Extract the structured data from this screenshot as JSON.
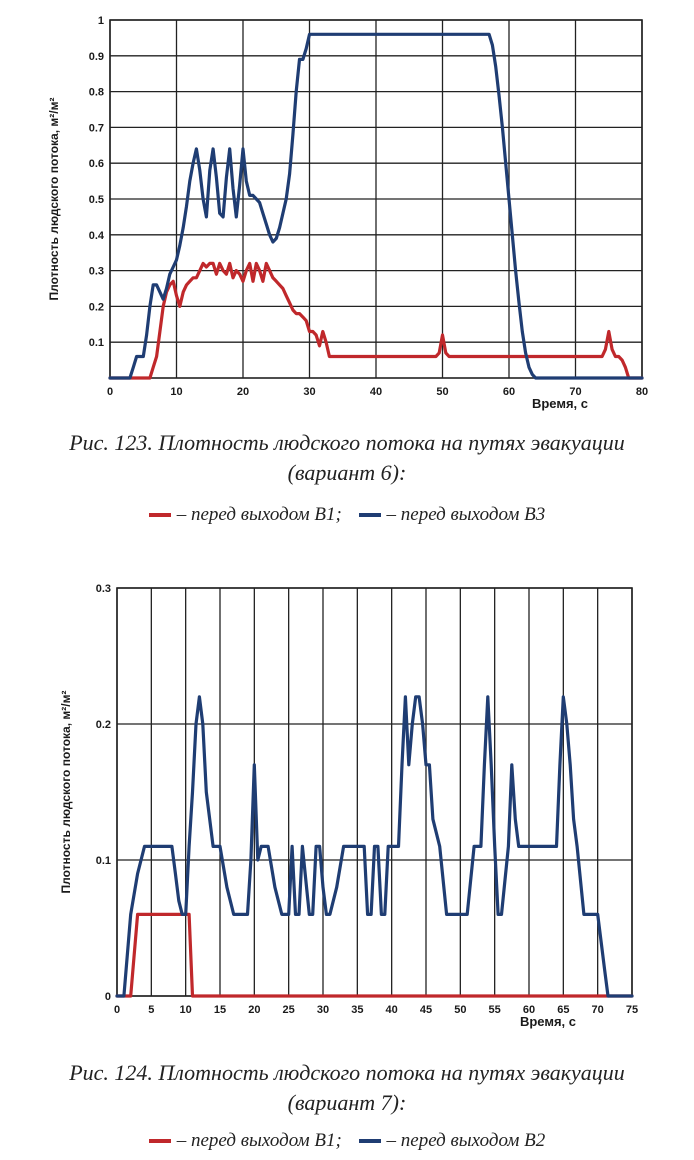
{
  "chart_data": [
    {
      "type": "line",
      "ylabel": "Плотность людского потока, м²/м²",
      "xlabel": "Время, с",
      "xlim": [
        0,
        80
      ],
      "ylim": [
        0,
        1
      ],
      "x_ticks": [
        "0",
        "10",
        "20",
        "30",
        "40",
        "50",
        "60",
        "70",
        "80"
      ],
      "y_ticks": [
        "0.1",
        "0.2",
        "0.3",
        "0.4",
        "0.5",
        "0.6",
        "0.7",
        "0.8",
        "0.9",
        "1"
      ],
      "grid": true,
      "caption_line1": "Рис. 123. Плотность людского потока на путях эвакуации",
      "caption_line2": "(вариант 6):",
      "legend": [
        {
          "color": "#c0282b",
          "text": "– перед выходом В1;"
        },
        {
          "color": "#1f3d73",
          "text": "– перед выходом В3"
        }
      ],
      "series": [
        {
          "color": "#c0282b",
          "x": [
            0,
            6,
            6.5,
            7,
            7.5,
            8,
            8.5,
            9,
            9.5,
            10,
            10.5,
            11,
            11.5,
            12,
            12.5,
            13,
            13.5,
            14,
            14.5,
            15,
            15.5,
            16,
            16.5,
            17,
            17.5,
            18,
            18.5,
            19,
            19.5,
            20,
            20.5,
            21,
            21.5,
            22,
            22.5,
            23,
            23.5,
            24,
            24.5,
            25,
            25.5,
            26,
            26.5,
            27,
            27.5,
            28,
            28.5,
            29,
            29.5,
            30,
            30.5,
            31,
            31.5,
            32,
            32.5,
            33,
            33.5,
            34,
            49,
            49.5,
            50,
            50.5,
            51,
            74,
            74.5,
            75,
            75.5,
            76,
            76.5,
            77,
            77.5,
            78,
            80
          ],
          "y": [
            0,
            0,
            0.03,
            0.06,
            0.13,
            0.2,
            0.24,
            0.26,
            0.27,
            0.23,
            0.2,
            0.24,
            0.26,
            0.27,
            0.28,
            0.28,
            0.3,
            0.32,
            0.31,
            0.32,
            0.32,
            0.29,
            0.32,
            0.3,
            0.29,
            0.32,
            0.28,
            0.3,
            0.29,
            0.27,
            0.3,
            0.32,
            0.27,
            0.32,
            0.3,
            0.27,
            0.32,
            0.3,
            0.28,
            0.27,
            0.26,
            0.25,
            0.23,
            0.21,
            0.19,
            0.18,
            0.18,
            0.17,
            0.16,
            0.13,
            0.13,
            0.12,
            0.09,
            0.13,
            0.1,
            0.06,
            0.06,
            0.06,
            0.06,
            0.07,
            0.12,
            0.07,
            0.06,
            0.06,
            0.08,
            0.13,
            0.08,
            0.06,
            0.06,
            0.05,
            0.03,
            0,
            0
          ]
        },
        {
          "color": "#1f3d73",
          "x": [
            0,
            3,
            3.5,
            4,
            4.5,
            5,
            5.5,
            6,
            6.5,
            7,
            7.5,
            8,
            8.5,
            9,
            9.5,
            10,
            10.5,
            11,
            11.5,
            12,
            12.5,
            13,
            13.5,
            14,
            14.5,
            15,
            15.5,
            16,
            16.5,
            17,
            17.5,
            18,
            18.5,
            19,
            19.5,
            20,
            20.5,
            21,
            21.5,
            22,
            22.5,
            23,
            23.5,
            24,
            24.5,
            25,
            25.5,
            26,
            26.5,
            27,
            27.5,
            28,
            28.5,
            29,
            29.5,
            30,
            30.5,
            31,
            40,
            50,
            56,
            56.5,
            57,
            57.5,
            58,
            58.5,
            59,
            59.5,
            60,
            60.5,
            61,
            61.5,
            62,
            62.5,
            63,
            63.5,
            64,
            80
          ],
          "y": [
            0,
            0,
            0.03,
            0.06,
            0.06,
            0.06,
            0.12,
            0.2,
            0.26,
            0.26,
            0.24,
            0.22,
            0.25,
            0.29,
            0.31,
            0.33,
            0.37,
            0.42,
            0.48,
            0.55,
            0.6,
            0.64,
            0.58,
            0.5,
            0.45,
            0.58,
            0.64,
            0.56,
            0.46,
            0.45,
            0.56,
            0.64,
            0.53,
            0.45,
            0.54,
            0.64,
            0.55,
            0.51,
            0.51,
            0.5,
            0.49,
            0.46,
            0.43,
            0.4,
            0.38,
            0.39,
            0.42,
            0.46,
            0.5,
            0.57,
            0.68,
            0.8,
            0.89,
            0.89,
            0.92,
            0.96,
            0.96,
            0.96,
            0.96,
            0.96,
            0.96,
            0.96,
            0.96,
            0.93,
            0.87,
            0.79,
            0.7,
            0.6,
            0.5,
            0.4,
            0.3,
            0.21,
            0.13,
            0.07,
            0.03,
            0.01,
            0,
            0
          ]
        }
      ]
    },
    {
      "type": "line",
      "ylabel": "Плотность людского потока, м²/м²",
      "xlabel": "Время, с",
      "xlim": [
        0,
        75
      ],
      "ylim": [
        0,
        0.3
      ],
      "x_ticks": [
        "0",
        "5",
        "10",
        "15",
        "20",
        "25",
        "30",
        "35",
        "40",
        "45",
        "50",
        "55",
        "60",
        "65",
        "70",
        "75"
      ],
      "y_ticks": [
        "0",
        "0.1",
        "0.2",
        "0.3"
      ],
      "grid": true,
      "caption_line1": "Рис. 124. Плотность людского потока на путях эвакуации",
      "caption_line2": "(вариант 7):",
      "legend": [
        {
          "color": "#c0282b",
          "text": "– перед выходом В1;"
        },
        {
          "color": "#1f3d73",
          "text": "– перед выходом В2"
        }
      ],
      "series": [
        {
          "color": "#c0282b",
          "x": [
            0,
            2,
            3,
            4,
            5,
            6,
            7,
            8,
            9,
            10,
            10.5,
            11,
            75
          ],
          "y": [
            0,
            0,
            0.06,
            0.06,
            0.06,
            0.06,
            0.06,
            0.06,
            0.06,
            0.06,
            0.06,
            0,
            0
          ]
        },
        {
          "color": "#1f3d73",
          "x": [
            0,
            1,
            2,
            3,
            4,
            5,
            6,
            7,
            8,
            8.5,
            9,
            9.5,
            10,
            10.5,
            11,
            11.5,
            12,
            12.5,
            13,
            14,
            15,
            16,
            17,
            18,
            19,
            19.5,
            20,
            20.5,
            21,
            22,
            23,
            24,
            25,
            25.5,
            26,
            26.5,
            27,
            28,
            28.5,
            29,
            29.5,
            30,
            30.5,
            31,
            32,
            33,
            34,
            35,
            36,
            36.5,
            37,
            37.5,
            38,
            38.5,
            39,
            39.5,
            40,
            41,
            41.5,
            42,
            42.5,
            43,
            43.5,
            44,
            44.5,
            45,
            45.5,
            46,
            47,
            48,
            49,
            50,
            51,
            52,
            53,
            53.5,
            54,
            54.5,
            55,
            55.5,
            56,
            57,
            57.5,
            58,
            58.5,
            59,
            60,
            61,
            62,
            63,
            64,
            64.5,
            65,
            65.5,
            66,
            66.5,
            67,
            68,
            69,
            70,
            70.5,
            71,
            71.5,
            72,
            72.5,
            75
          ],
          "y": [
            0,
            0,
            0.06,
            0.09,
            0.11,
            0.11,
            0.11,
            0.11,
            0.11,
            0.09,
            0.07,
            0.06,
            0.06,
            0.11,
            0.15,
            0.2,
            0.22,
            0.2,
            0.15,
            0.11,
            0.11,
            0.08,
            0.06,
            0.06,
            0.06,
            0.1,
            0.17,
            0.1,
            0.11,
            0.11,
            0.08,
            0.06,
            0.06,
            0.11,
            0.06,
            0.06,
            0.11,
            0.06,
            0.06,
            0.11,
            0.11,
            0.08,
            0.06,
            0.06,
            0.08,
            0.11,
            0.11,
            0.11,
            0.11,
            0.06,
            0.06,
            0.11,
            0.11,
            0.06,
            0.06,
            0.11,
            0.11,
            0.11,
            0.17,
            0.22,
            0.17,
            0.2,
            0.22,
            0.22,
            0.2,
            0.17,
            0.17,
            0.13,
            0.11,
            0.06,
            0.06,
            0.06,
            0.06,
            0.11,
            0.11,
            0.17,
            0.22,
            0.17,
            0.11,
            0.06,
            0.06,
            0.11,
            0.17,
            0.13,
            0.11,
            0.11,
            0.11,
            0.11,
            0.11,
            0.11,
            0.11,
            0.17,
            0.22,
            0.2,
            0.17,
            0.13,
            0.11,
            0.06,
            0.06,
            0.06,
            0.04,
            0.02,
            0,
            0,
            0,
            0
          ]
        }
      ]
    }
  ]
}
